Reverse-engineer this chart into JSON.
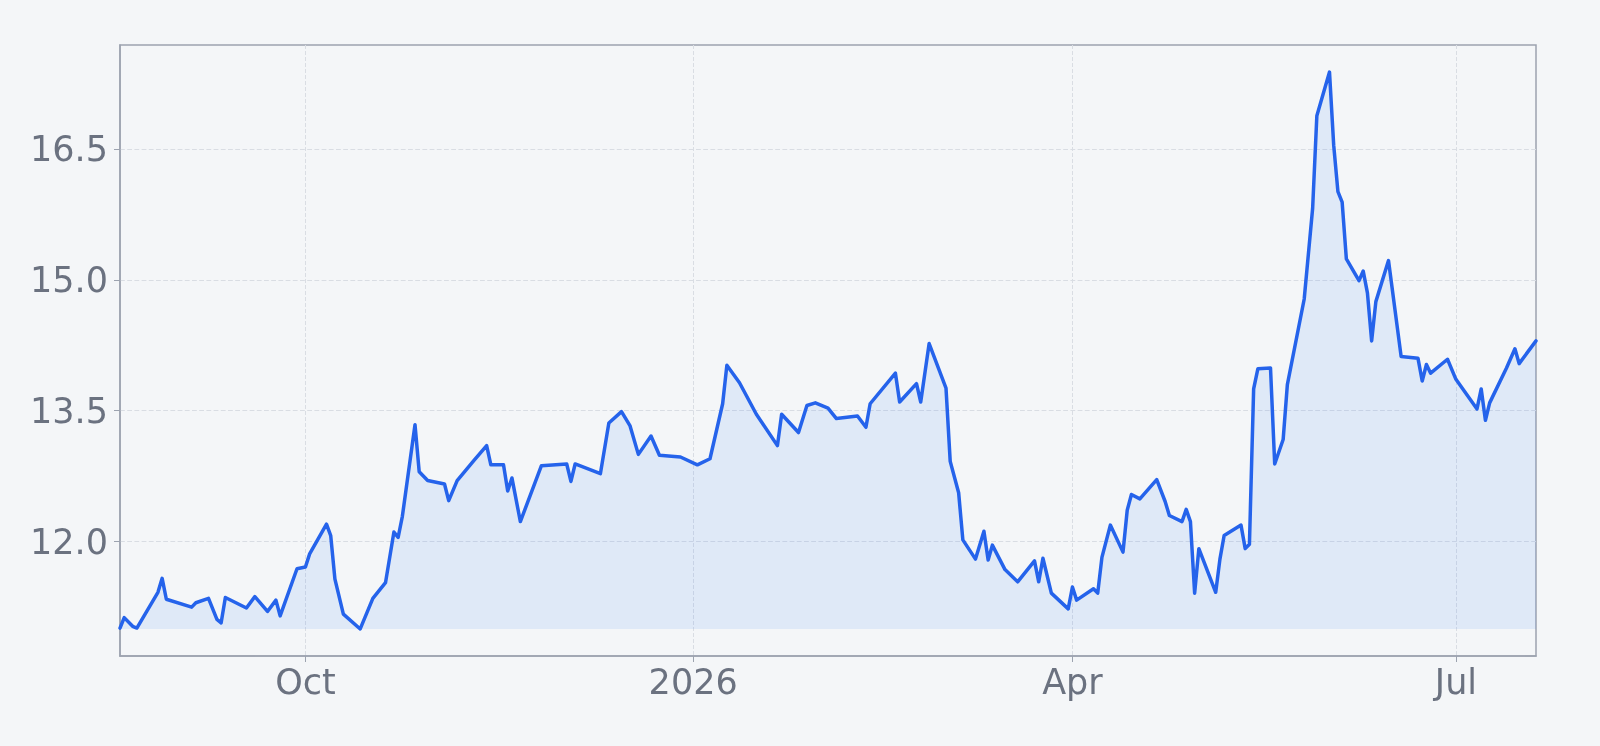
{
  "chart_data": {
    "type": "area",
    "color": "#2563eb",
    "grid": true,
    "marker": "none",
    "line_style": "solid",
    "xlim": [
      "2025-08-18",
      "2026-07-20"
    ],
    "ylim": [
      10.69,
      17.69
    ],
    "xticks": [
      {
        "value": "2025-10-01",
        "label": "Oct"
      },
      {
        "value": "2026-01-01",
        "label": "2026"
      },
      {
        "value": "2026-04-01",
        "label": "Apr"
      },
      {
        "value": "2026-07-01",
        "label": "Jul"
      }
    ],
    "yticks": [
      {
        "value": 12,
        "label": "12.0"
      },
      13.5,
      {
        "value": 15,
        "label": "15.0"
      },
      16.5
    ],
    "x": [
      "2025-08-18",
      "2025-08-19",
      "2025-08-21",
      "2025-08-22",
      "2025-08-27",
      "2025-08-28",
      "2025-08-29",
      "2025-09-04",
      "2025-09-05",
      "2025-09-08",
      "2025-09-10",
      "2025-09-11",
      "2025-09-12",
      "2025-09-17",
      "2025-09-19",
      "2025-09-22",
      "2025-09-24",
      "2025-09-25",
      "2025-09-29",
      "2025-10-01",
      "2025-10-02",
      "2025-10-06",
      "2025-10-07",
      "2025-10-08",
      "2025-10-10",
      "2025-10-14",
      "2025-10-17",
      "2025-10-20",
      "2025-10-22",
      "2025-10-23",
      "2025-10-24",
      "2025-10-27",
      "2025-10-28",
      "2025-10-30",
      "2025-11-03",
      "2025-11-04",
      "2025-11-06",
      "2025-11-10",
      "2025-11-13",
      "2025-11-14",
      "2025-11-17",
      "2025-11-18",
      "2025-11-19",
      "2025-11-21",
      "2025-11-26",
      "2025-12-02",
      "2025-12-03",
      "2025-12-04",
      "2025-12-10",
      "2025-12-12",
      "2025-12-15",
      "2025-12-17",
      "2025-12-19",
      "2025-12-22",
      "2025-12-24",
      "2025-12-29",
      "2026-01-02",
      "2026-01-05",
      "2026-01-08",
      "2026-01-09",
      "2026-01-12",
      "2026-01-16",
      "2026-01-21",
      "2026-01-22",
      "2026-01-26",
      "2026-01-28",
      "2026-01-30",
      "2026-02-02",
      "2026-02-04",
      "2026-02-09",
      "2026-02-11",
      "2026-02-12",
      "2026-02-18",
      "2026-02-19",
      "2026-02-23",
      "2026-02-24",
      "2026-02-26",
      "2026-03-02",
      "2026-03-03",
      "2026-03-05",
      "2026-03-06",
      "2026-03-09",
      "2026-03-11",
      "2026-03-12",
      "2026-03-13",
      "2026-03-16",
      "2026-03-19",
      "2026-03-23",
      "2026-03-24",
      "2026-03-25",
      "2026-03-27",
      "2026-03-31",
      "2026-04-01",
      "2026-04-02",
      "2026-04-06",
      "2026-04-07",
      "2026-04-08",
      "2026-04-10",
      "2026-04-13",
      "2026-04-14",
      "2026-04-15",
      "2026-04-17",
      "2026-04-21",
      "2026-04-23",
      "2026-04-24",
      "2026-04-27",
      "2026-04-28",
      "2026-04-29",
      "2026-04-30",
      "2026-05-01",
      "2026-05-05",
      "2026-05-06",
      "2026-05-07",
      "2026-05-11",
      "2026-05-12",
      "2026-05-13",
      "2026-05-14",
      "2026-05-15",
      "2026-05-18",
      "2026-05-19",
      "2026-05-21",
      "2026-05-22",
      "2026-05-26",
      "2026-05-28",
      "2026-05-29",
      "2026-06-01",
      "2026-06-02",
      "2026-06-03",
      "2026-06-04",
      "2026-06-05",
      "2026-06-08",
      "2026-06-09",
      "2026-06-10",
      "2026-06-11",
      "2026-06-12",
      "2026-06-15",
      "2026-06-18",
      "2026-06-22",
      "2026-06-23",
      "2026-06-24",
      "2026-06-25",
      "2026-06-29",
      "2026-07-01",
      "2026-07-06",
      "2026-07-07",
      "2026-07-08",
      "2026-07-09",
      "2026-07-13",
      "2026-07-15",
      "2026-07-16",
      "2026-07-20"
    ],
    "values": [
      11.01,
      11.13,
      11.03,
      11.01,
      11.42,
      11.58,
      11.34,
      11.25,
      11.3,
      11.35,
      11.11,
      11.07,
      11.36,
      11.24,
      11.37,
      11.2,
      11.33,
      11.15,
      11.69,
      11.71,
      11.86,
      12.2,
      12.07,
      11.57,
      11.17,
      11.0,
      11.35,
      11.53,
      12.11,
      12.05,
      12.29,
      13.34,
      12.8,
      12.7,
      12.66,
      12.47,
      12.7,
      12.93,
      13.1,
      12.88,
      12.88,
      12.58,
      12.73,
      12.23,
      12.87,
      12.89,
      12.69,
      12.89,
      12.78,
      13.36,
      13.49,
      13.33,
      13.0,
      13.21,
      12.99,
      12.97,
      12.88,
      12.95,
      13.58,
      14.02,
      13.82,
      13.46,
      13.1,
      13.46,
      13.25,
      13.56,
      13.59,
      13.53,
      13.41,
      13.44,
      13.31,
      13.58,
      13.93,
      13.6,
      13.81,
      13.6,
      14.27,
      13.76,
      12.92,
      12.56,
      12.02,
      11.8,
      12.12,
      11.79,
      11.96,
      11.68,
      11.54,
      11.78,
      11.54,
      11.81,
      11.41,
      11.23,
      11.48,
      11.33,
      11.46,
      11.41,
      11.82,
      12.19,
      11.88,
      12.36,
      12.54,
      12.49,
      12.71,
      12.46,
      12.3,
      12.23,
      12.37,
      12.23,
      11.41,
      11.92,
      11.42,
      11.8,
      12.07,
      12.19,
      11.92,
      11.97,
      13.75,
      13.98,
      13.99,
      12.89,
      13.17,
      13.8,
      14.78,
      15.82,
      16.88,
      17.38,
      16.54,
      16.01,
      15.89,
      15.24,
      14.99,
      15.1,
      14.85,
      14.3,
      14.75,
      15.22,
      14.12,
      14.1,
      13.84,
      14.03,
      13.93,
      14.09,
      13.86,
      13.52,
      13.75,
      13.39,
      13.59,
      13.99,
      14.21,
      14.04,
      14.3
    ]
  }
}
